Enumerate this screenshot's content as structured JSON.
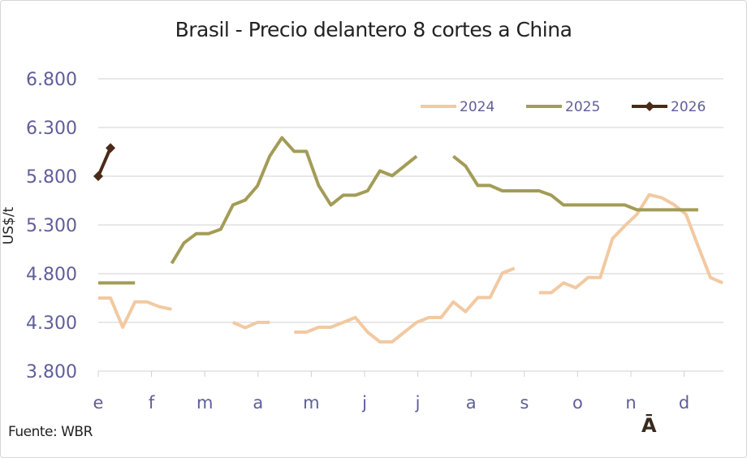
{
  "chart_data": {
    "type": "line",
    "title": "Brasil - Precio delantero 8 cortes a China",
    "xlabel": "",
    "ylabel": "US$/t",
    "ylim": [
      3800,
      6800
    ],
    "yticks": [
      3800,
      4300,
      4800,
      5300,
      5800,
      6300,
      6800
    ],
    "ytick_labels": [
      "3.800",
      "4.300",
      "4.800",
      "5.300",
      "5.800",
      "6.300",
      "6.800"
    ],
    "x_unit": "week of year (0-51)",
    "xtick_labels": [
      "e",
      "f",
      "m",
      "a",
      "m",
      "j",
      "j",
      "a",
      "s",
      "o",
      "n",
      "d"
    ],
    "grid": true,
    "legend_position": "top-right",
    "source": "Fuente: WBR",
    "footnote_mark": "Ā",
    "series": [
      {
        "name": "2024",
        "color": "#F2C9A1",
        "marker": "none",
        "points": [
          [
            0,
            4550
          ],
          [
            1,
            4550
          ],
          [
            2,
            4250
          ],
          [
            3,
            4510
          ],
          [
            4,
            4510
          ],
          [
            5,
            4460
          ],
          [
            6,
            4435
          ],
          null,
          [
            11,
            4300
          ],
          [
            12,
            4245
          ],
          [
            13,
            4300
          ],
          [
            14,
            4300
          ],
          null,
          [
            16,
            4200
          ],
          [
            17,
            4200
          ],
          [
            18,
            4250
          ],
          [
            19,
            4250
          ],
          [
            20,
            4300
          ],
          [
            21,
            4350
          ],
          [
            22,
            4200
          ],
          [
            23,
            4100
          ],
          [
            24,
            4100
          ],
          [
            25,
            4200
          ],
          [
            26,
            4300
          ],
          [
            27,
            4350
          ],
          [
            28,
            4350
          ],
          [
            29,
            4510
          ],
          [
            30,
            4410
          ],
          [
            31,
            4555
          ],
          [
            32,
            4555
          ],
          [
            33,
            4805
          ],
          [
            34,
            4855
          ],
          null,
          [
            36,
            4605
          ],
          [
            37,
            4605
          ],
          [
            38,
            4705
          ],
          [
            39,
            4655
          ],
          [
            40,
            4760
          ],
          [
            41,
            4760
          ],
          [
            42,
            5160
          ],
          [
            43,
            5290
          ],
          [
            44,
            5410
          ],
          [
            45,
            5610
          ],
          [
            46,
            5580
          ],
          [
            47,
            5510
          ],
          [
            48,
            5410
          ],
          [
            49,
            5080
          ],
          [
            50,
            4760
          ],
          [
            51,
            4705
          ]
        ]
      },
      {
        "name": "2025",
        "color": "#A39C57",
        "marker": "none",
        "points": [
          [
            0,
            4705
          ],
          [
            1,
            4705
          ],
          [
            2,
            4705
          ],
          [
            3,
            4705
          ],
          null,
          [
            6,
            4905
          ],
          [
            7,
            5115
          ],
          [
            8,
            5210
          ],
          [
            9,
            5210
          ],
          [
            10,
            5255
          ],
          [
            11,
            5505
          ],
          [
            12,
            5555
          ],
          [
            13,
            5700
          ],
          [
            14,
            6005
          ],
          [
            15,
            6195
          ],
          [
            16,
            6055
          ],
          [
            17,
            6055
          ],
          [
            18,
            5705
          ],
          [
            19,
            5505
          ],
          [
            20,
            5605
          ],
          [
            21,
            5605
          ],
          [
            22,
            5650
          ],
          [
            23,
            5855
          ],
          [
            24,
            5805
          ],
          [
            25,
            5905
          ],
          [
            26,
            6005
          ],
          null,
          [
            29,
            6005
          ],
          [
            30,
            5905
          ],
          [
            31,
            5705
          ],
          [
            32,
            5705
          ],
          [
            33,
            5650
          ],
          [
            34,
            5650
          ],
          [
            35,
            5650
          ],
          [
            36,
            5650
          ],
          [
            37,
            5605
          ],
          [
            38,
            5505
          ],
          [
            39,
            5505
          ],
          [
            40,
            5505
          ],
          [
            41,
            5505
          ],
          [
            42,
            5505
          ],
          [
            43,
            5505
          ],
          [
            44,
            5455
          ],
          [
            45,
            5455
          ],
          [
            46,
            5455
          ],
          [
            47,
            5455
          ],
          [
            48,
            5455
          ],
          [
            49,
            5455
          ]
        ]
      },
      {
        "name": "2026",
        "color": "#4A2A18",
        "marker": "diamond",
        "points": [
          [
            0,
            5800
          ],
          [
            1,
            6090
          ]
        ]
      }
    ]
  }
}
